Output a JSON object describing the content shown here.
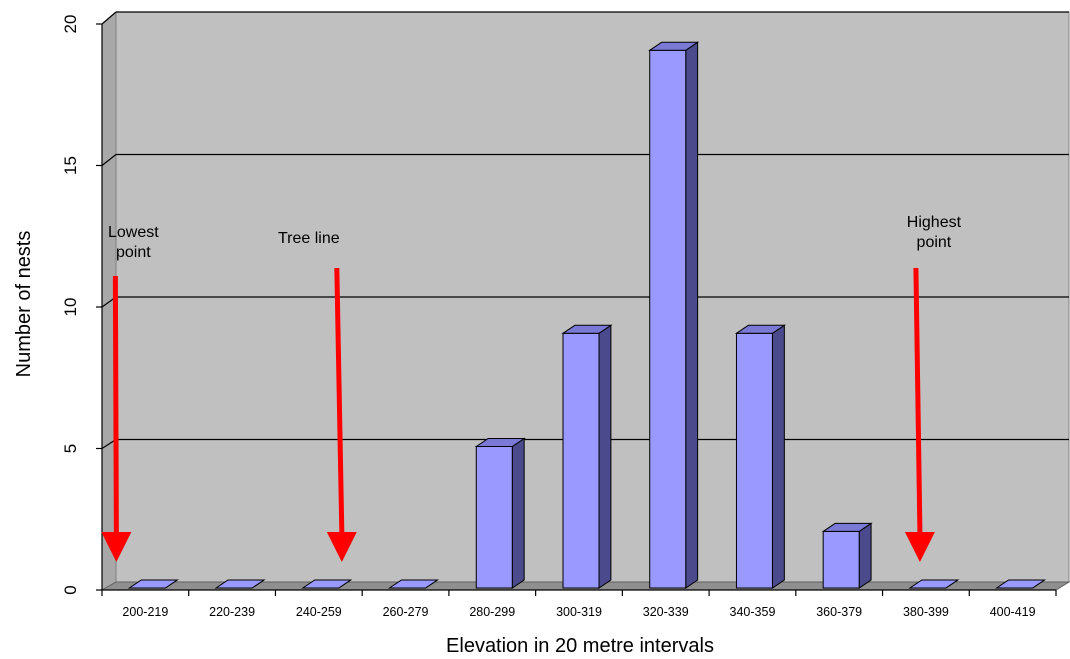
{
  "chart_data": {
    "type": "bar",
    "categories": [
      "200-219",
      "220-239",
      "240-259",
      "260-279",
      "280-299",
      "300-319",
      "320-339",
      "340-359",
      "360-379",
      "380-399",
      "400-419"
    ],
    "values": [
      0,
      0,
      0,
      0,
      5,
      9,
      19,
      9,
      2,
      0,
      0
    ],
    "title": "",
    "xlabel": "Elevation in 20 metre intervals",
    "ylabel": "Number of nests",
    "ylim": [
      0,
      20
    ],
    "yticks": [
      0,
      5,
      10,
      15,
      20
    ],
    "grid": true,
    "three_d": true,
    "colors": {
      "bar_front": "#9999ff",
      "bar_side": "#4a4a8c",
      "bar_top": "#7a7ad6",
      "plot_back": "#c0c0c0",
      "plot_floor": "#8f8f8f",
      "arrow": "#ff0000"
    },
    "annotations": [
      {
        "lines": [
          "Lowest",
          "point"
        ],
        "category": "200-219"
      },
      {
        "lines": [
          "Tree line"
        ],
        "category": "240-259"
      },
      {
        "lines": [
          "Highest",
          "point"
        ],
        "category": "380-399"
      }
    ]
  }
}
